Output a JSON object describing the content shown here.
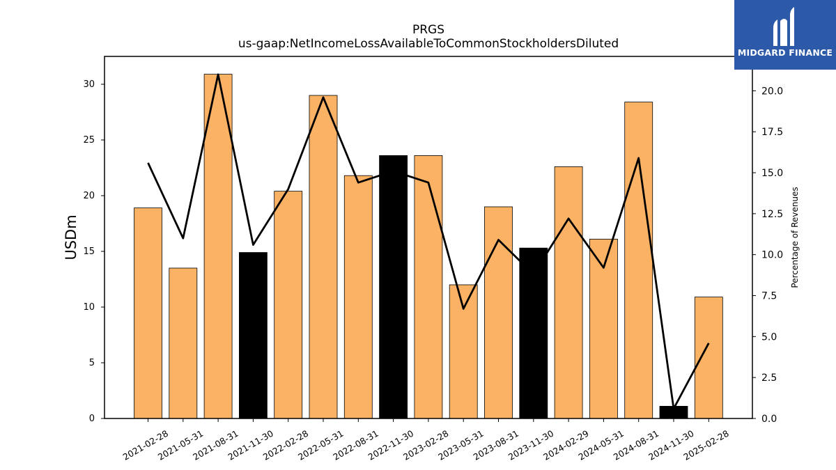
{
  "chart_data": {
    "type": "bar",
    "title": "PRGS",
    "subtitle": "us-gaap:NetIncomeLossAvailableToCommonStockholdersDiluted",
    "ylabel": "USDm",
    "ylabel_right": "Percentage of Revenues",
    "categories": [
      "2021-02-28",
      "2021-05-31",
      "2021-08-31",
      "2021-11-30",
      "2022-02-28",
      "2022-05-31",
      "2022-08-31",
      "2022-11-30",
      "2023-02-28",
      "2023-05-31",
      "2023-08-31",
      "2023-11-30",
      "2024-02-29",
      "2024-05-31",
      "2024-08-31",
      "2024-11-30",
      "2025-02-28"
    ],
    "series": [
      {
        "values": [
          18.9,
          13.5,
          30.9,
          14.9,
          20.4,
          29.0,
          21.8,
          23.6,
          23.6,
          12.0,
          19.0,
          15.3,
          22.6,
          16.1,
          28.4,
          1.1,
          10.9
        ],
        "highlight": [
          false,
          false,
          false,
          true,
          false,
          false,
          false,
          true,
          false,
          false,
          false,
          true,
          false,
          false,
          false,
          true,
          false
        ],
        "color": "#fbb264",
        "highlight_color": "#000000"
      },
      {
        "axis": "right",
        "type": "line",
        "values": [
          15.6,
          11.0,
          21.0,
          10.6,
          14.0,
          19.6,
          14.4,
          15.1,
          14.4,
          6.7,
          10.9,
          8.8,
          12.2,
          9.2,
          15.9,
          0.6,
          4.6
        ],
        "color": "#000000"
      }
    ],
    "ylim": [
      0,
      32.5
    ],
    "yticks": [
      0,
      5,
      10,
      15,
      20,
      25,
      30
    ],
    "ylim_right": [
      0,
      22.1
    ],
    "yticks_right": [
      "0.0",
      "2.5",
      "5.0",
      "7.5",
      "10.0",
      "12.5",
      "15.0",
      "17.5",
      "20.0"
    ],
    "grid": false,
    "legend": "none"
  },
  "logo": {
    "text": "MIDGARD FINANCE",
    "color": "#2d5aa8"
  }
}
